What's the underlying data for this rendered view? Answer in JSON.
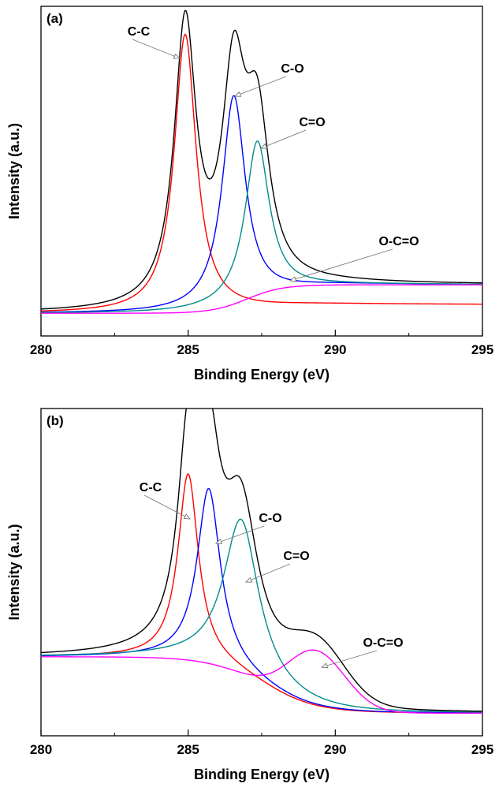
{
  "chart_data": [
    {
      "type": "line",
      "panel_label": "(a)",
      "xlabel": "Binding Energy (eV)",
      "ylabel": "Intensity (a.u.)",
      "xlim": [
        280,
        295
      ],
      "ylim": [
        -0.08,
        1.08
      ],
      "x_ticks": [
        "280",
        "285",
        "290",
        "295"
      ],
      "grid": false,
      "series": [
        {
          "name": "C-C",
          "color": "#ff0000",
          "center": 284.9,
          "height": 0.98,
          "width": 0.45,
          "shape": "lorentz",
          "base_left": 0.0,
          "base_right": 0.03
        },
        {
          "name": "C-O",
          "color": "#0000ff",
          "center": 286.55,
          "height": 0.74,
          "width": 0.48,
          "shape": "lorentz",
          "base_left": 0.0,
          "base_right": 0.1
        },
        {
          "name": "C=O",
          "color": "#008b8b",
          "center": 287.35,
          "height": 0.56,
          "width": 0.5,
          "shape": "lorentz",
          "base_left": 0.0,
          "base_right": 0.1
        },
        {
          "name": "O-C=O",
          "color": "#ff00ff",
          "center": 287.0,
          "height": 0.0,
          "width": 0.6,
          "shape": "step",
          "base_left": 0.0,
          "base_right": 0.1
        },
        {
          "name": "",
          "color": "#000000",
          "shape": "envelope",
          "base_left": 0.0,
          "base_right": 0.1
        }
      ],
      "annotations": [
        {
          "text": "C-C",
          "target_x": 284.9,
          "target_y": 0.98
        },
        {
          "text": "C-O",
          "target_x": 286.55,
          "target_y": 0.74
        },
        {
          "text": "C=O",
          "target_x": 287.3,
          "target_y": 0.56
        },
        {
          "text": "O-C=O",
          "target_x": 288.3,
          "target_y": 0.09
        }
      ]
    },
    {
      "type": "line",
      "panel_label": "(b)",
      "xlabel": "Binding Energy (eV)",
      "ylabel": "Intensity (a.u.)",
      "xlim": [
        280,
        295
      ],
      "ylim": [
        -0.08,
        1.08
      ],
      "x_ticks": [
        "280",
        "285",
        "290",
        "295"
      ],
      "grid": false,
      "series": [
        {
          "name": "C-C",
          "color": "#ff0000",
          "center": 285.0,
          "height": 0.66,
          "width": 0.42,
          "shape": "lorentz",
          "base_left": 0.2,
          "base_right": 0.0
        },
        {
          "name": "C-O",
          "color": "#0000ff",
          "center": 285.7,
          "height": 0.62,
          "width": 0.48,
          "shape": "lorentz",
          "base_left": 0.2,
          "base_right": 0.0
        },
        {
          "name": "C=O",
          "color": "#008b8b",
          "center": 286.8,
          "height": 0.55,
          "width": 0.72,
          "shape": "lorentz",
          "base_left": 0.2,
          "base_right": 0.0
        },
        {
          "name": "O-C=O",
          "color": "#ff00ff",
          "center": 289.35,
          "height": 0.2,
          "width": 1.4,
          "shape": "gauss",
          "base_left": 0.2,
          "base_right": 0.0
        },
        {
          "name": "",
          "color": "#000000",
          "shape": "envelope",
          "base_left": 0.2,
          "base_right": 0.0
        }
      ],
      "annotations": [
        {
          "text": "C-C",
          "target_x": 285.0,
          "target_y": 0.66
        },
        {
          "text": "C-O",
          "target_x": 285.7,
          "target_y": 0.62
        },
        {
          "text": "C=O",
          "target_x": 286.8,
          "target_y": 0.55
        },
        {
          "text": "O-C=O",
          "target_x": 289.4,
          "target_y": 0.2
        }
      ]
    }
  ]
}
